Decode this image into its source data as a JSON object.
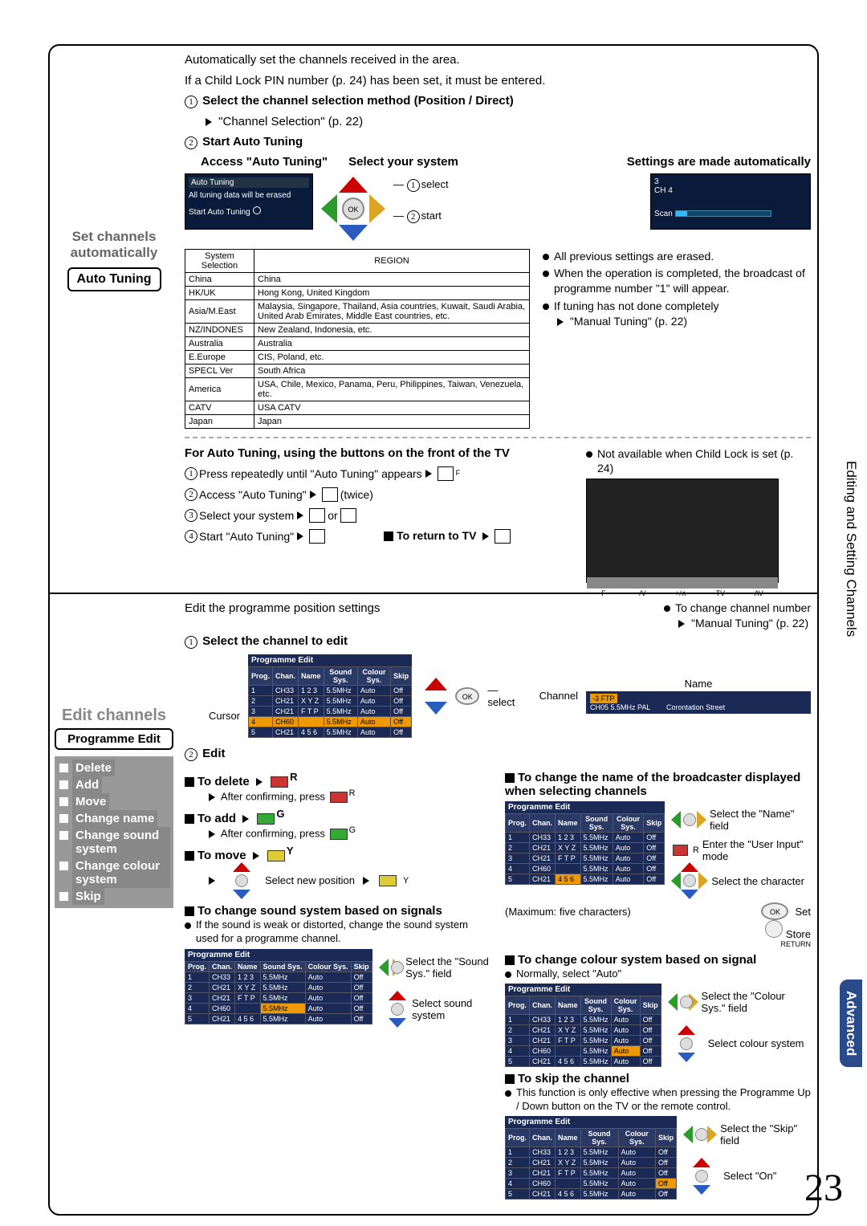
{
  "page_number": "23",
  "side_tab_1": "Editing and Setting Channels",
  "side_tab_2": "Advanced",
  "section1": {
    "left_title_1": "Set channels",
    "left_title_2": "automatically",
    "badge": "Auto Tuning",
    "intro_1": "Automatically set the channels received in the area.",
    "intro_2": "If a Child Lock PIN number (p. 24) has been set, it must be entered.",
    "step1_bold": "Select the channel selection method (Position / Direct)",
    "step1_ref": "\"Channel Selection\" (p. 22)",
    "step2_bold": "Start Auto Tuning",
    "access_label": "Access \"Auto Tuning\"",
    "select_sys": "Select your system",
    "settings_auto": "Settings are made automatically",
    "tvbox1_title": "Auto Tuning",
    "tvbox1_line1": "All tuning data will be erased",
    "tvbox1_line2": "Start Auto Tuning",
    "sel_label": "select",
    "start_label": "start",
    "tvbox2_line1": "3",
    "tvbox2_line2": "CH 4",
    "tvbox2_scan": "Scan",
    "region_header_sys": "System Selection",
    "region_header_reg": "REGION",
    "regions": [
      [
        "China",
        "China"
      ],
      [
        "HK/UK",
        "Hong Kong, United Kingdom"
      ],
      [
        "Asia/M.East",
        "Malaysia, Singapore, Thailand, Asia countries, Kuwait, Saudi Arabia, United Arab Emirates, Middle East countries, etc."
      ],
      [
        "NZ/INDONES",
        "New Zealand, Indonesia, etc."
      ],
      [
        "Australia",
        "Australia"
      ],
      [
        "E.Europe",
        "CIS, Poland, etc."
      ],
      [
        "SPECL Ver",
        "South Africa"
      ],
      [
        "America",
        "USA, Chile, Mexico, Panama, Peru, Philippines, Taiwan, Venezuela, etc."
      ],
      [
        "CATV",
        "USA CATV"
      ],
      [
        "Japan",
        "Japan"
      ]
    ],
    "bullets": [
      "All previous settings are erased.",
      "When the operation is completed, the broadcast of programme number \"1\" will appear.",
      "If tuning has not done completely"
    ],
    "bullet3_ref": "\"Manual Tuning\" (p. 22)",
    "front_title": "For Auto Tuning, using the buttons on the front of the TV",
    "front_1": "Press repeatedly until \"Auto Tuning\" appears",
    "front_2": "Access \"Auto Tuning\"",
    "front_2_twice": "(twice)",
    "front_3": "Select your system",
    "front_3_or": "or",
    "front_4": "Start \"Auto Tuning\"",
    "to_return": "To return to TV",
    "not_avail": "Not available when Child Lock is set (p. 24)",
    "btn_f": "F",
    "btn_tv": "TV",
    "btn_mv": "−/V",
    "btn_pv": "+/∧",
    "btn_av": "AV"
  },
  "section2": {
    "hdr": "Edit channels",
    "badge": "Programme Edit",
    "items": [
      "Delete",
      "Add",
      "Move",
      "Change name",
      "Change sound system",
      "Change colour system",
      "Skip"
    ],
    "intro": "Edit the programme position settings",
    "step1": "Select the channel to edit",
    "change_num": "To change channel number",
    "change_num_ref": "\"Manual Tuning\" (p. 22)",
    "tbl_title": "Programme Edit",
    "tbl_headers": [
      "Prog.",
      "Chan.",
      "Name",
      "Sound Sys.",
      "Colour Sys.",
      "Skip"
    ],
    "tbl_rows": [
      [
        "1",
        "CH33",
        "1 2 3",
        "5.5MHz",
        "Auto",
        "Off"
      ],
      [
        "2",
        "CH21",
        "X Y Z",
        "5.5MHz",
        "Auto",
        "Off"
      ],
      [
        "3",
        "CH21",
        "F T P",
        "5.5MHz",
        "Auto",
        "Off"
      ],
      [
        "4",
        "CH60",
        "",
        "5.5MHz",
        "Auto",
        "Off"
      ],
      [
        "5",
        "CH21",
        "4 5 6",
        "5.5MHz",
        "Auto",
        "Off"
      ]
    ],
    "cursor_lbl": "Cursor",
    "select_lbl": "select",
    "name_lbl": "Name",
    "channel_lbl": "Channel",
    "strip_top": "-3 FTP",
    "strip_line": "CH05   5.5MHz   PAL",
    "strip_name": "Corontation Street",
    "edit_hdr": "Edit",
    "to_delete": "To delete",
    "after_conf": "After confirming, press",
    "to_add": "To add",
    "to_move": "To move",
    "sel_new_pos": "Select new position",
    "change_name_t": "To change the name of the broadcaster displayed when selecting channels",
    "name_steps": [
      "Select the \"Name\" field",
      "Enter the \"User Input\" mode",
      "Select the character",
      "Set",
      "Store"
    ],
    "max5": "(Maximum: five characters)",
    "ok_btn": "OK",
    "return_btn": "RETURN",
    "r_label": "R",
    "g_label": "G",
    "y_label": "Y",
    "sound_t": "To change sound system based on signals",
    "sound_b1": "If the sound is weak or distorted, change the sound system used for a programme channel.",
    "sound_s1": "Select the \"Sound Sys.\" field",
    "sound_s2": "Select sound system",
    "colour_t": "To change colour system based on signal",
    "colour_b": "Normally, select \"Auto\"",
    "colour_s1": "Select the \"Colour Sys.\" field",
    "colour_s2": "Select colour system",
    "skip_t": "To skip the channel",
    "skip_b": "This function is only effective when pressing the Programme Up / Down button on the TV or the remote control.",
    "skip_s1": "Select the \"Skip\" field",
    "skip_s2": "Select \"On\""
  }
}
